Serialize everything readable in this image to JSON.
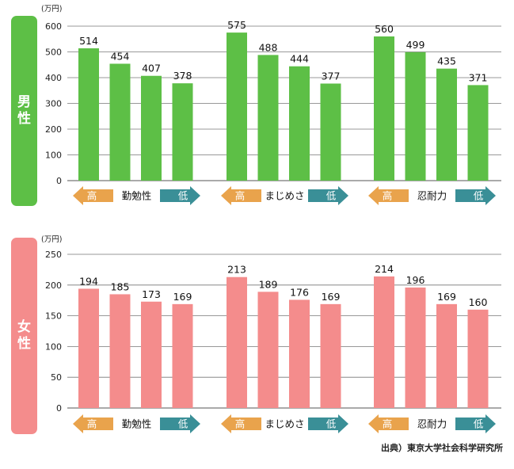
{
  "colors": {
    "male_bar": "#5dbf46",
    "male_label_bg": "#5dbf46",
    "female_bar": "#f48c8c",
    "female_label_bg": "#f48c8c",
    "high_arrow": "#e9a34c",
    "low_arrow": "#3a8f97",
    "grid": "#777777"
  },
  "panels": {
    "male": {
      "label_chars": [
        "男",
        "性"
      ]
    },
    "female": {
      "label_chars": [
        "女",
        "性"
      ]
    }
  },
  "source": "出典）東京大学社会科学研究所",
  "chart_data": [
    {
      "type": "bar",
      "id": "male",
      "ylabel": "(万円)",
      "ylim": [
        0,
        600
      ],
      "yticks": [
        0,
        100,
        200,
        300,
        400,
        500,
        600
      ],
      "bar_color": "#5dbf46",
      "groups": [
        {
          "name": "勤勉性",
          "high_label": "高",
          "low_label": "低",
          "values": [
            514,
            454,
            407,
            378
          ]
        },
        {
          "name": "まじめさ",
          "high_label": "高",
          "low_label": "低",
          "values": [
            575,
            488,
            444,
            377
          ]
        },
        {
          "name": "忍耐力",
          "high_label": "高",
          "low_label": "低",
          "values": [
            560,
            499,
            435,
            371
          ]
        }
      ]
    },
    {
      "type": "bar",
      "id": "female",
      "ylabel": "(万円)",
      "ylim": [
        0,
        250
      ],
      "yticks": [
        0,
        50,
        100,
        150,
        200,
        250
      ],
      "bar_color": "#f48c8c",
      "groups": [
        {
          "name": "勤勉性",
          "high_label": "高",
          "low_label": "低",
          "values": [
            194,
            185,
            173,
            169
          ]
        },
        {
          "name": "まじめさ",
          "high_label": "高",
          "low_label": "低",
          "values": [
            213,
            189,
            176,
            169
          ]
        },
        {
          "name": "忍耐力",
          "high_label": "高",
          "low_label": "低",
          "values": [
            214,
            196,
            169,
            160
          ]
        }
      ]
    }
  ]
}
